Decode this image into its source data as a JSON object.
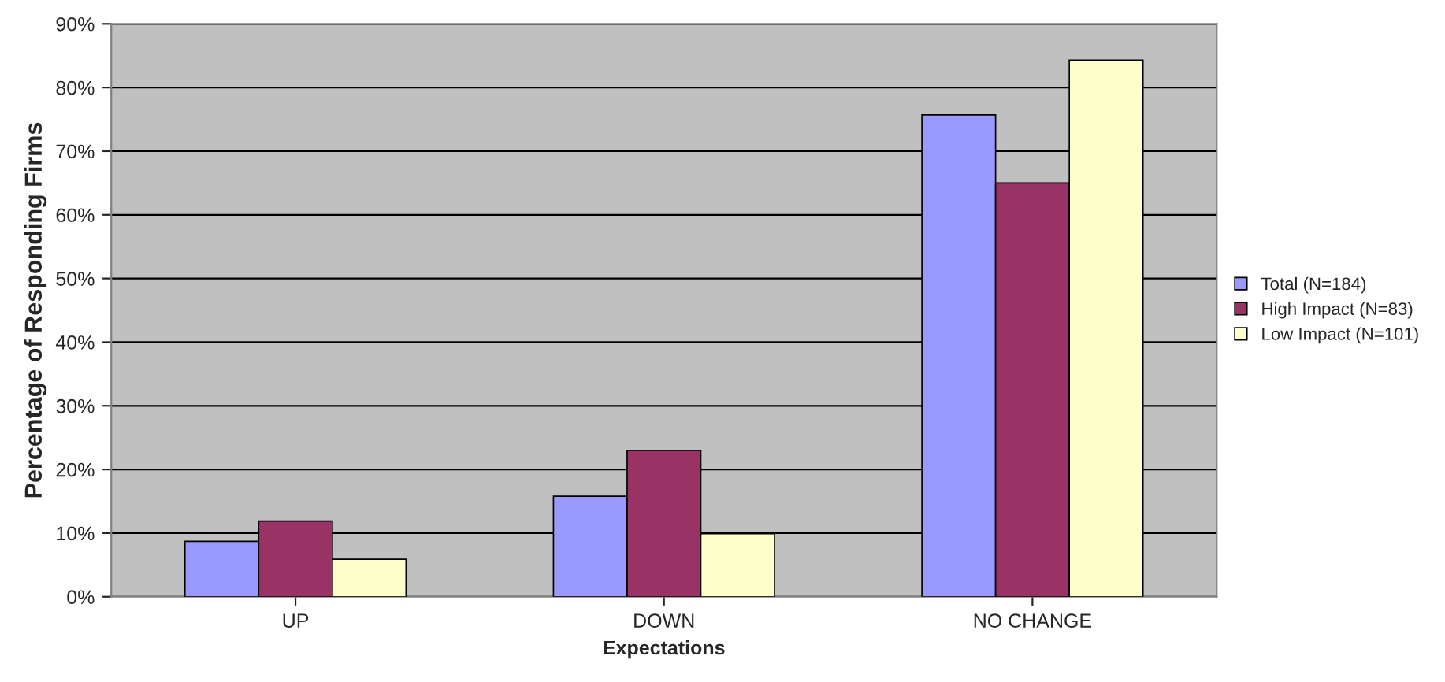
{
  "chart_data": {
    "type": "bar",
    "xlabel": "Expectations",
    "ylabel": "Percentage of Responding Firms",
    "categories": [
      "UP",
      "DOWN",
      "NO CHANGE"
    ],
    "series": [
      {
        "name": "Total (N=184)",
        "color": "#9999ff",
        "values": [
          8.7,
          15.8,
          75.7
        ]
      },
      {
        "name": "High Impact (N=83)",
        "color": "#993366",
        "values": [
          11.9,
          23.0,
          65.0
        ]
      },
      {
        "name": "Low Impact (N=101)",
        "color": "#ffffcc",
        "values": [
          5.9,
          9.9,
          84.3
        ]
      }
    ],
    "ylim": [
      0,
      90
    ],
    "yticks": [
      {
        "value": 0,
        "label": "0%"
      },
      {
        "value": 10,
        "label": "10%"
      },
      {
        "value": 20,
        "label": "20%"
      },
      {
        "value": 30,
        "label": "30%"
      },
      {
        "value": 40,
        "label": "40%"
      },
      {
        "value": 50,
        "label": "50%"
      },
      {
        "value": 60,
        "label": "60%"
      },
      {
        "value": 70,
        "label": "70%"
      },
      {
        "value": 80,
        "label": "80%"
      },
      {
        "value": 90,
        "label": "90%"
      }
    ],
    "grid": "y",
    "legend": "right"
  }
}
